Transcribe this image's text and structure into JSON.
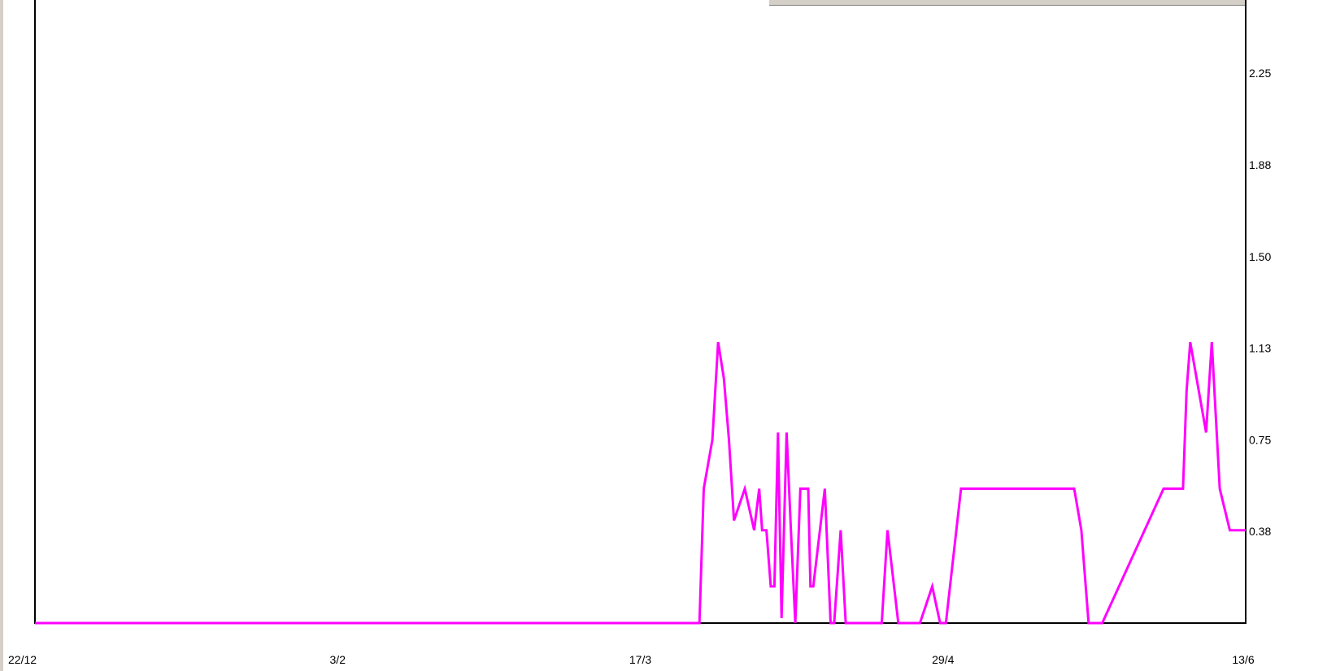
{
  "chart_data": {
    "type": "line",
    "x_tick_labels": [
      "22/12",
      "3/2",
      "17/3",
      "29/4",
      "13/6"
    ],
    "y_tick_labels": [
      "0.38",
      "0.75",
      "1.13",
      "1.50",
      "1.88",
      "2.25"
    ],
    "y_tick_values": [
      0.375,
      0.75,
      1.125,
      1.5,
      1.875,
      2.25
    ],
    "xlabel": "",
    "ylabel": "",
    "title": "",
    "x_range_days": [
      0,
      168
    ],
    "ylim": [
      0,
      2.55
    ],
    "grid": false,
    "legend": "none",
    "colors": {
      "series": "#ff00ff",
      "axis": "#000000",
      "background": "#ffffff",
      "frame": "#d4d0c8"
    },
    "series": [
      {
        "x": [
          0,
          92.2,
          92.8,
          94,
          94.8,
          95.6,
          96.3,
          97,
          98.5,
          99.8,
          100.5,
          100.9,
          101.5,
          102.1,
          102.6,
          103.1,
          103.6,
          104.3,
          104.9,
          105.5,
          106.2,
          107.3,
          107.6,
          108,
          109.6,
          110.4,
          110.9,
          111.8,
          112.5,
          112.8,
          113.3,
          113.9,
          114.6,
          115.3,
          116.7,
          117.5,
          118.3,
          119.8,
          122.8,
          124.5,
          125.6,
          126.4,
          128.5,
          144.2,
          145.2,
          146.2,
          148.1,
          156.6,
          159.3,
          159.8,
          160.3,
          162.5,
          163.3,
          164.4,
          165.8,
          166.1,
          166.5,
          166.8,
          167.3,
          167.7,
          168
        ],
        "y": [
          0,
          0,
          0.55,
          0.75,
          1.15,
          1.0,
          0.75,
          0.42,
          0.55,
          0.38,
          0.55,
          0.38,
          0.38,
          0.15,
          0.15,
          0.78,
          0.02,
          0.78,
          0.38,
          0,
          0.55,
          0.55,
          0.15,
          0.15,
          0.55,
          0,
          0,
          0.38,
          0,
          0,
          0,
          0,
          0,
          0,
          0,
          0,
          0.38,
          0,
          0,
          0.15,
          0,
          0,
          0.55,
          0.55,
          0.38,
          0,
          0,
          0.55,
          0.55,
          0.95,
          1.15,
          0.78,
          1.15,
          0.55,
          0.38,
          0.38,
          0.38,
          0.38,
          0.38,
          0.38,
          0.38
        ]
      }
    ]
  }
}
